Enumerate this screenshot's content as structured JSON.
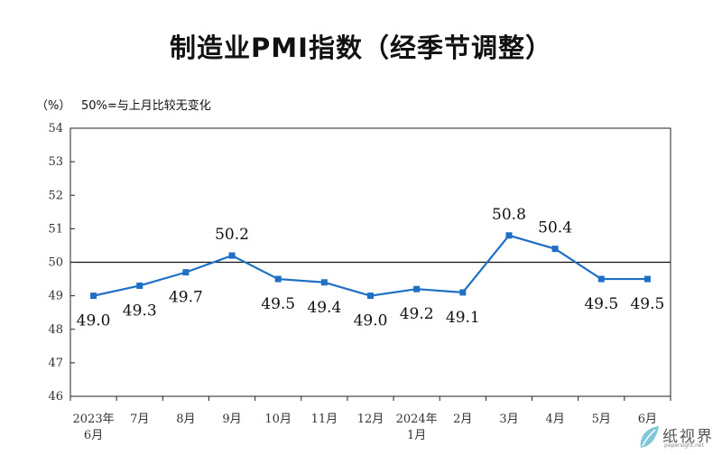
{
  "chart_data": {
    "type": "line",
    "title": "制造业PMI指数（经季节调整）",
    "unit": "（%）",
    "note": "50%=与上月比较无变化",
    "categories": [
      [
        "2023年",
        "6月"
      ],
      [
        "7月"
      ],
      [
        "8月"
      ],
      [
        "9月"
      ],
      [
        "10月"
      ],
      [
        "11月"
      ],
      [
        "12月"
      ],
      [
        "2024年",
        "1月"
      ],
      [
        "2月"
      ],
      [
        "3月"
      ],
      [
        "4月"
      ],
      [
        "5月"
      ],
      [
        "6月"
      ]
    ],
    "series": [
      {
        "values": [
          49.0,
          49.3,
          49.7,
          50.2,
          49.5,
          49.4,
          49.0,
          49.2,
          49.1,
          50.8,
          50.4,
          49.5,
          49.5
        ],
        "labels": [
          "49.0",
          "49.3",
          "49.7",
          "50.2",
          "49.5",
          "49.4",
          "49.0",
          "49.2",
          "49.1",
          "50.8",
          "50.4",
          "49.5",
          "49.5"
        ],
        "label_position": [
          "below",
          "below",
          "below",
          "above",
          "below",
          "below",
          "below",
          "below",
          "below",
          "above",
          "above",
          "below",
          "below"
        ],
        "color": "#1f6fc5"
      }
    ],
    "y_ticks": [
      46,
      47,
      48,
      49,
      50,
      51,
      52,
      53,
      54
    ],
    "ylim": [
      46,
      54
    ],
    "reference_line": 50,
    "grid": false,
    "legend": "none"
  },
  "watermark": {
    "text": "纸视界",
    "sub": "papersight.net"
  }
}
